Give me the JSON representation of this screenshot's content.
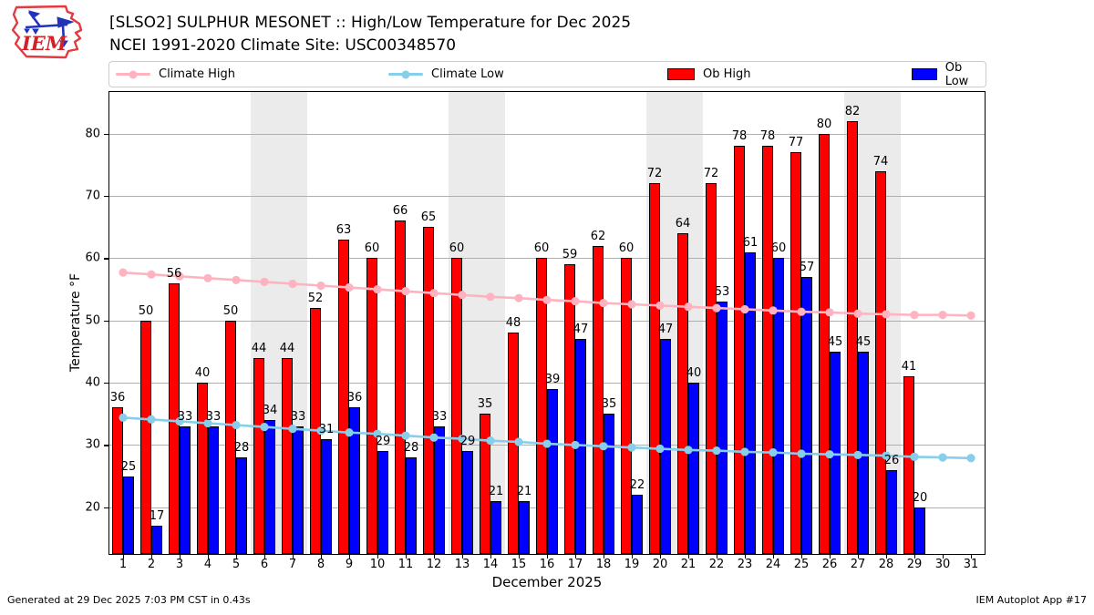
{
  "header": {
    "title": "[SLSO2] SULPHUR MESONET :: High/Low Temperature for Dec 2025",
    "subtitle": "NCEI 1991-2020 Climate Site: USC00348570",
    "logo_text": "IEM"
  },
  "legend": {
    "items": [
      {
        "label": "Climate High",
        "swatch": "line",
        "color": "#ffb3c1"
      },
      {
        "label": "Climate Low",
        "swatch": "line",
        "color": "#87ceeb"
      },
      {
        "label": "Ob High",
        "swatch": "patch",
        "color": "#ff0000"
      },
      {
        "label": "Ob Low",
        "swatch": "patch",
        "color": "#0000ff"
      }
    ]
  },
  "chart_data": {
    "type": "bar",
    "title": "[SLSO2] SULPHUR MESONET :: High/Low Temperature for Dec 2025",
    "xlabel": "December 2025",
    "ylabel": "Temperature °F",
    "x": [
      1,
      2,
      3,
      4,
      5,
      6,
      7,
      8,
      9,
      10,
      11,
      12,
      13,
      14,
      15,
      16,
      17,
      18,
      19,
      20,
      21,
      22,
      23,
      24,
      25,
      26,
      27,
      28,
      29,
      30,
      31
    ],
    "series": [
      {
        "name": "Ob High",
        "type": "bar",
        "color": "#ff0000",
        "values": [
          36,
          50,
          56,
          40,
          50,
          44,
          44,
          52,
          63,
          60,
          66,
          65,
          60,
          35,
          48,
          60,
          59,
          62,
          60,
          72,
          64,
          72,
          78,
          78,
          77,
          80,
          82,
          74,
          41,
          null,
          null
        ]
      },
      {
        "name": "Ob Low",
        "type": "bar",
        "color": "#0000ff",
        "values": [
          25,
          17,
          33,
          33,
          28,
          34,
          33,
          31,
          36,
          29,
          28,
          33,
          29,
          21,
          21,
          39,
          47,
          35,
          22,
          47,
          40,
          53,
          61,
          60,
          57,
          45,
          45,
          26,
          20,
          null,
          null
        ]
      },
      {
        "name": "Climate High",
        "type": "line",
        "color": "#ffb3c1",
        "values": [
          57.7,
          57.4,
          57.1,
          56.8,
          56.5,
          56.2,
          55.9,
          55.6,
          55.3,
          55.0,
          54.7,
          54.4,
          54.1,
          53.8,
          53.6,
          53.3,
          53.1,
          52.8,
          52.6,
          52.4,
          52.2,
          52.0,
          51.8,
          51.6,
          51.4,
          51.3,
          51.1,
          51.0,
          50.9,
          50.9,
          50.8
        ]
      },
      {
        "name": "Climate Low",
        "type": "line",
        "color": "#87ceeb",
        "values": [
          34.4,
          34.1,
          33.8,
          33.5,
          33.2,
          32.9,
          32.6,
          32.3,
          32.0,
          31.8,
          31.5,
          31.2,
          31.0,
          30.7,
          30.5,
          30.2,
          30.0,
          29.8,
          29.6,
          29.4,
          29.2,
          29.1,
          28.9,
          28.8,
          28.6,
          28.5,
          28.4,
          28.3,
          28.1,
          28.0,
          27.9
        ]
      }
    ],
    "ylim": [
      12.5,
      86.7
    ],
    "yticks": [
      20,
      30,
      40,
      50,
      60,
      70,
      80
    ],
    "weekend_bands": [
      [
        5.5,
        7.5
      ],
      [
        12.5,
        14.5
      ],
      [
        19.5,
        21.5
      ],
      [
        26.5,
        28.5
      ]
    ],
    "grid": "horizontal",
    "legend_position": "top",
    "colors": {
      "band": "#ebebeb",
      "grid": "#b0b0b0",
      "ob_high": "#ff0000",
      "ob_low": "#0000ff",
      "climate_high": "#ffb3c1",
      "climate_low": "#87ceeb"
    }
  },
  "footer": {
    "generated": "Generated at 29 Dec 2025 7:03 PM CST in 0.43s",
    "app": "IEM Autoplot App #17"
  }
}
